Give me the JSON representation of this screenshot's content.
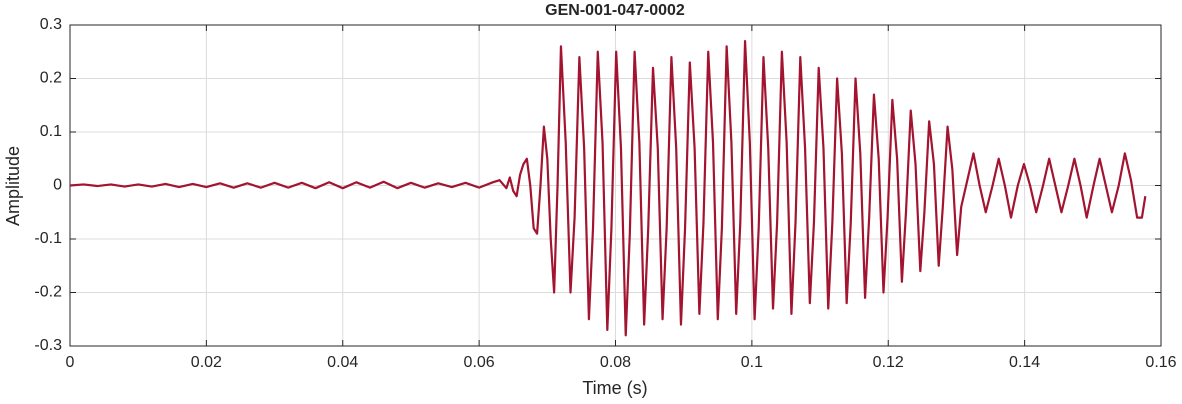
{
  "chart_data": {
    "type": "line",
    "title": "GEN-001-047-0002",
    "x_label": "Time (s)",
    "y_label": "Amplitude",
    "color": "#a2142f",
    "grid": true,
    "xlim": [
      0,
      0.16
    ],
    "xticks": [
      0,
      0.02,
      0.04,
      0.06,
      0.08,
      0.1,
      0.12,
      0.14,
      0.16
    ],
    "ylim": [
      -0.3,
      0.3
    ],
    "yticks": [
      -0.3,
      -0.2,
      -0.1,
      0,
      0.1,
      0.2,
      0.3
    ],
    "x": [
      0,
      0.002,
      0.004,
      0.006,
      0.008,
      0.01,
      0.012,
      0.014,
      0.016,
      0.018,
      0.02,
      0.022,
      0.024,
      0.026,
      0.028,
      0.03,
      0.032,
      0.034,
      0.036,
      0.038,
      0.04,
      0.042,
      0.044,
      0.046,
      0.048,
      0.05,
      0.052,
      0.054,
      0.056,
      0.058,
      0.06,
      0.062,
      0.063,
      0.064,
      0.0645,
      0.065,
      0.0655,
      0.066,
      0.0665,
      0.067,
      0.0675,
      0.068,
      0.0685,
      0.069,
      0.0695,
      0.07,
      0.0705,
      0.071,
      0.0715,
      0.072,
      0.0727,
      0.0734,
      0.074,
      0.0747,
      0.0754,
      0.0761,
      0.0767,
      0.0774,
      0.0781,
      0.0788,
      0.0794,
      0.0801,
      0.0808,
      0.0815,
      0.0821,
      0.0828,
      0.0835,
      0.0842,
      0.0848,
      0.0855,
      0.0862,
      0.0869,
      0.0875,
      0.0882,
      0.0889,
      0.0896,
      0.0902,
      0.0909,
      0.0916,
      0.0923,
      0.0929,
      0.0936,
      0.0943,
      0.095,
      0.0956,
      0.0963,
      0.097,
      0.0977,
      0.0983,
      0.099,
      0.0997,
      0.1004,
      0.101,
      0.1017,
      0.1024,
      0.1031,
      0.1037,
      0.1044,
      0.1051,
      0.1058,
      0.1064,
      0.1071,
      0.1078,
      0.1085,
      0.1091,
      0.1098,
      0.1105,
      0.1112,
      0.1118,
      0.1125,
      0.1132,
      0.1139,
      0.1145,
      0.1152,
      0.1159,
      0.1166,
      0.1172,
      0.1179,
      0.1186,
      0.1193,
      0.1199,
      0.1206,
      0.1213,
      0.122,
      0.1226,
      0.1233,
      0.124,
      0.1247,
      0.1253,
      0.126,
      0.1267,
      0.1274,
      0.128,
      0.1287,
      0.1294,
      0.1301,
      0.1307,
      0.1325,
      0.1334,
      0.1343,
      0.1353,
      0.1362,
      0.1371,
      0.138,
      0.139,
      0.1399,
      0.1408,
      0.1417,
      0.1427,
      0.1436,
      0.1445,
      0.1454,
      0.1464,
      0.1473,
      0.1482,
      0.1491,
      0.1501,
      0.151,
      0.1519,
      0.1528,
      0.1538,
      0.1547,
      0.1556,
      0.1565,
      0.1572,
      0.1577
    ],
    "values": [
      0,
      0.002,
      -0.001,
      0.002,
      -0.002,
      0.002,
      -0.002,
      0.003,
      -0.003,
      0.003,
      -0.003,
      0.004,
      -0.004,
      0.004,
      -0.004,
      0.005,
      -0.004,
      0.005,
      -0.005,
      0.006,
      -0.005,
      0.006,
      -0.004,
      0.007,
      -0.005,
      0.005,
      -0.004,
      0.004,
      -0.003,
      0.005,
      -0.004,
      0.006,
      0.01,
      -0.005,
      0.015,
      -0.01,
      -0.02,
      0.02,
      0.04,
      0.05,
      0,
      -0.08,
      -0.09,
      0,
      0.11,
      0.05,
      -0.1,
      -0.2,
      0,
      0.26,
      0.08,
      -0.2,
      -0.06,
      0.24,
      0.07,
      -0.25,
      -0.08,
      0.25,
      0.08,
      -0.27,
      -0.08,
      0.25,
      0.07,
      -0.28,
      -0.09,
      0.25,
      0.08,
      -0.26,
      -0.08,
      0.22,
      0.07,
      -0.25,
      -0.08,
      0.24,
      0.07,
      -0.26,
      -0.08,
      0.23,
      0.07,
      -0.24,
      -0.07,
      0.25,
      0.08,
      -0.25,
      -0.08,
      0.26,
      0.08,
      -0.24,
      -0.07,
      0.27,
      0.08,
      -0.25,
      -0.08,
      0.24,
      0.07,
      -0.23,
      -0.07,
      0.25,
      0.08,
      -0.24,
      -0.07,
      0.24,
      0.07,
      -0.22,
      -0.07,
      0.22,
      0.07,
      -0.23,
      -0.07,
      0.2,
      0.06,
      -0.22,
      -0.07,
      0.2,
      0.06,
      -0.21,
      -0.06,
      0.17,
      0.05,
      -0.2,
      -0.06,
      0.16,
      0.05,
      -0.18,
      -0.05,
      0.14,
      0.04,
      -0.16,
      -0.05,
      0.12,
      0.04,
      -0.15,
      -0.04,
      0.11,
      0.03,
      -0.13,
      -0.04,
      0.06,
      0,
      -0.05,
      0,
      0.05,
      0,
      -0.06,
      0,
      0.04,
      0,
      -0.05,
      0,
      0.05,
      0,
      -0.05,
      0,
      0.05,
      0,
      -0.06,
      0,
      0.05,
      0,
      -0.05,
      0,
      0.06,
      0.01,
      -0.06,
      -0.06,
      -0.02
    ]
  }
}
